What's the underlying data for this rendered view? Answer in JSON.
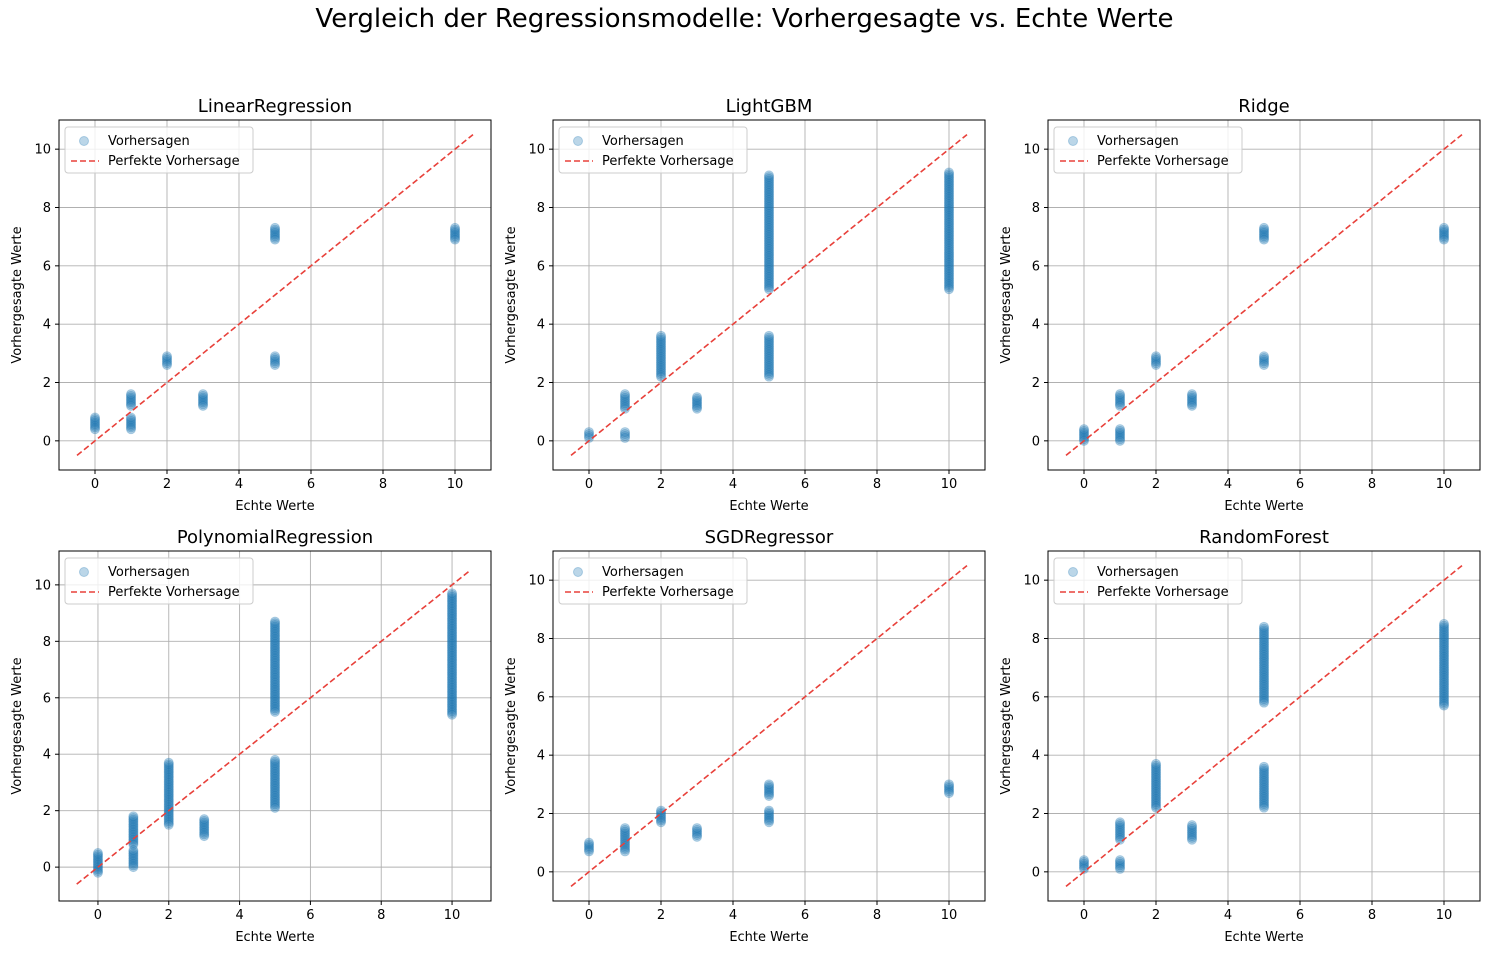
{
  "figure": {
    "suptitle": "Vergleich der Regressionsmodelle: Vorhergesagte vs. Echte Werte"
  },
  "colors": {
    "points": "#1f77b4",
    "perfect_line": "#e8403a",
    "grid": "#b0b0b0"
  },
  "chart_data": [
    {
      "type": "scatter",
      "title": "LinearRegression",
      "xlabel": "Echte Werte",
      "ylabel": "Vorhergesagte Werte",
      "xticks": [
        0,
        2,
        4,
        6,
        8,
        10
      ],
      "yticks": [
        0,
        2,
        4,
        6,
        8,
        10
      ],
      "xlim": [
        -1,
        11
      ],
      "ylim": [
        -1,
        11
      ],
      "grid": true,
      "legend": {
        "position": "upper-left",
        "entries": [
          "Vorhersagen",
          "Perfekte Vorhersage"
        ]
      },
      "perfect_line": {
        "from": [
          -0.5,
          -0.5
        ],
        "to": [
          10.5,
          10.5
        ]
      },
      "clusters": [
        {
          "x": 0,
          "ymin": 0.4,
          "ymax": 0.8
        },
        {
          "x": 1,
          "ymin": 0.4,
          "ymax": 0.8
        },
        {
          "x": 1,
          "ymin": 1.2,
          "ymax": 1.6
        },
        {
          "x": 2,
          "ymin": 2.6,
          "ymax": 2.9
        },
        {
          "x": 3,
          "ymin": 1.2,
          "ymax": 1.6
        },
        {
          "x": 5,
          "ymin": 2.6,
          "ymax": 2.9
        },
        {
          "x": 5,
          "ymin": 6.9,
          "ymax": 7.3
        },
        {
          "x": 10,
          "ymin": 6.9,
          "ymax": 7.3
        }
      ]
    },
    {
      "type": "scatter",
      "title": "LightGBM",
      "xlabel": "Echte Werte",
      "ylabel": "Vorhergesagte Werte",
      "xticks": [
        0,
        2,
        4,
        6,
        8,
        10
      ],
      "yticks": [
        0,
        2,
        4,
        6,
        8,
        10
      ],
      "xlim": [
        -1,
        11
      ],
      "ylim": [
        -1,
        11
      ],
      "grid": true,
      "legend": {
        "position": "upper-left",
        "entries": [
          "Vorhersagen",
          "Perfekte Vorhersage"
        ]
      },
      "perfect_line": {
        "from": [
          -0.5,
          -0.5
        ],
        "to": [
          10.5,
          10.5
        ]
      },
      "clusters": [
        {
          "x": 0,
          "ymin": 0.1,
          "ymax": 0.3
        },
        {
          "x": 1,
          "ymin": 0.1,
          "ymax": 0.3
        },
        {
          "x": 1,
          "ymin": 1.1,
          "ymax": 1.6
        },
        {
          "x": 2,
          "ymin": 2.2,
          "ymax": 3.6
        },
        {
          "x": 3,
          "ymin": 1.1,
          "ymax": 1.5
        },
        {
          "x": 5,
          "ymin": 2.2,
          "ymax": 3.6
        },
        {
          "x": 5,
          "ymin": 5.2,
          "ymax": 9.1
        },
        {
          "x": 10,
          "ymin": 5.2,
          "ymax": 9.2
        }
      ]
    },
    {
      "type": "scatter",
      "title": "Ridge",
      "xlabel": "Echte Werte",
      "ylabel": "Vorhergesagte Werte",
      "xticks": [
        0,
        2,
        4,
        6,
        8,
        10
      ],
      "yticks": [
        0,
        2,
        4,
        6,
        8,
        10
      ],
      "xlim": [
        -1,
        11
      ],
      "ylim": [
        -1,
        11
      ],
      "grid": true,
      "legend": {
        "position": "upper-left",
        "entries": [
          "Vorhersagen",
          "Perfekte Vorhersage"
        ]
      },
      "perfect_line": {
        "from": [
          -0.5,
          -0.5
        ],
        "to": [
          10.5,
          10.5
        ]
      },
      "clusters": [
        {
          "x": 0,
          "ymin": 0.0,
          "ymax": 0.4
        },
        {
          "x": 1,
          "ymin": 0.0,
          "ymax": 0.4
        },
        {
          "x": 1,
          "ymin": 1.2,
          "ymax": 1.6
        },
        {
          "x": 2,
          "ymin": 2.6,
          "ymax": 2.9
        },
        {
          "x": 3,
          "ymin": 1.2,
          "ymax": 1.6
        },
        {
          "x": 5,
          "ymin": 2.6,
          "ymax": 2.9
        },
        {
          "x": 5,
          "ymin": 6.9,
          "ymax": 7.3
        },
        {
          "x": 10,
          "ymin": 6.9,
          "ymax": 7.3
        }
      ]
    },
    {
      "type": "scatter",
      "title": "PolynomialRegression",
      "xlabel": "Echte Werte",
      "ylabel": "Vorhergesagte Werte",
      "xticks": [
        0,
        2,
        4,
        6,
        8,
        10
      ],
      "yticks": [
        0,
        2,
        4,
        6,
        8,
        10
      ],
      "xlim": [
        -1.1,
        11.1
      ],
      "ylim": [
        -1.2,
        11.2
      ],
      "grid": true,
      "legend": {
        "position": "upper-left",
        "entries": [
          "Vorhersagen",
          "Perfekte Vorhersage"
        ]
      },
      "perfect_line": {
        "from": [
          -0.6,
          -0.6
        ],
        "to": [
          10.5,
          10.5
        ]
      },
      "clusters": [
        {
          "x": 0,
          "ymin": -0.2,
          "ymax": 0.5
        },
        {
          "x": 1,
          "ymin": 0.0,
          "ymax": 0.6
        },
        {
          "x": 1,
          "ymin": 0.8,
          "ymax": 1.8
        },
        {
          "x": 2,
          "ymin": 1.5,
          "ymax": 3.7
        },
        {
          "x": 3,
          "ymin": 1.1,
          "ymax": 1.7
        },
        {
          "x": 5,
          "ymin": 2.1,
          "ymax": 3.8
        },
        {
          "x": 5,
          "ymin": 5.5,
          "ymax": 8.7
        },
        {
          "x": 10,
          "ymin": 5.4,
          "ymax": 9.7
        }
      ]
    },
    {
      "type": "scatter",
      "title": "SGDRegressor",
      "xlabel": "Echte Werte",
      "ylabel": "Vorhergesagte Werte",
      "xticks": [
        0,
        2,
        4,
        6,
        8,
        10
      ],
      "yticks": [
        0,
        2,
        4,
        6,
        8,
        10
      ],
      "xlim": [
        -1,
        11
      ],
      "ylim": [
        -1,
        11
      ],
      "grid": true,
      "legend": {
        "position": "upper-left",
        "entries": [
          "Vorhersagen",
          "Perfekte Vorhersage"
        ]
      },
      "perfect_line": {
        "from": [
          -0.5,
          -0.5
        ],
        "to": [
          10.5,
          10.5
        ]
      },
      "clusters": [
        {
          "x": 0,
          "ymin": 0.7,
          "ymax": 1.0
        },
        {
          "x": 1,
          "ymin": 0.7,
          "ymax": 1.5
        },
        {
          "x": 2,
          "ymin": 1.7,
          "ymax": 2.1
        },
        {
          "x": 3,
          "ymin": 1.2,
          "ymax": 1.5
        },
        {
          "x": 5,
          "ymin": 1.7,
          "ymax": 2.1
        },
        {
          "x": 5,
          "ymin": 2.6,
          "ymax": 3.0
        },
        {
          "x": 10,
          "ymin": 2.7,
          "ymax": 3.0
        }
      ]
    },
    {
      "type": "scatter",
      "title": "RandomForest",
      "xlabel": "Echte Werte",
      "ylabel": "Vorhergesagte Werte",
      "xticks": [
        0,
        2,
        4,
        6,
        8,
        10
      ],
      "yticks": [
        0,
        2,
        4,
        6,
        8,
        10
      ],
      "xlim": [
        -1,
        11
      ],
      "ylim": [
        -1,
        11
      ],
      "grid": true,
      "legend": {
        "position": "upper-left",
        "entries": [
          "Vorhersagen",
          "Perfekte Vorhersage"
        ]
      },
      "perfect_line": {
        "from": [
          -0.5,
          -0.5
        ],
        "to": [
          10.5,
          10.5
        ]
      },
      "clusters": [
        {
          "x": 0,
          "ymin": 0.1,
          "ymax": 0.4
        },
        {
          "x": 1,
          "ymin": 0.1,
          "ymax": 0.4
        },
        {
          "x": 1,
          "ymin": 1.1,
          "ymax": 1.7
        },
        {
          "x": 2,
          "ymin": 2.2,
          "ymax": 3.7
        },
        {
          "x": 3,
          "ymin": 1.1,
          "ymax": 1.6
        },
        {
          "x": 5,
          "ymin": 2.2,
          "ymax": 3.6
        },
        {
          "x": 5,
          "ymin": 5.8,
          "ymax": 8.4
        },
        {
          "x": 10,
          "ymin": 5.7,
          "ymax": 8.5
        }
      ]
    }
  ]
}
